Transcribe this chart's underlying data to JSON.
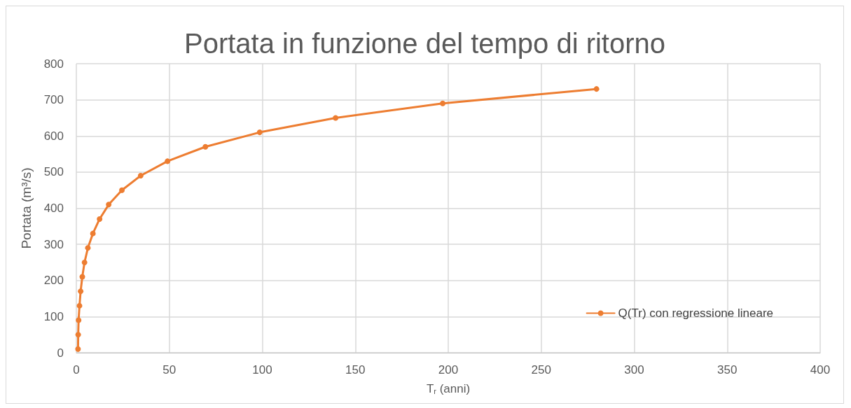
{
  "chart_data": {
    "type": "line",
    "title": "Portata in funzione del tempo di ritorno",
    "xlabel": "T$_{r}$ (anni)",
    "ylabel": "Portata (m³/s)",
    "series": [
      {
        "name": "Q(Tr) con regressione lineare",
        "color": "#ed7d31",
        "x": [
          0.9,
          1.0,
          1.2,
          1.7,
          2.3,
          3.2,
          4.4,
          6.2,
          8.9,
          12.5,
          17.4,
          24.5,
          34.6,
          49,
          69.4,
          98.6,
          139.4,
          197,
          279.7
        ],
        "values": [
          10,
          50,
          90,
          130,
          170,
          210,
          250,
          290,
          330,
          370,
          410,
          450,
          490,
          530,
          570,
          610,
          650,
          690,
          730
        ]
      }
    ],
    "xlim": [
      0,
      400
    ],
    "xticks": [
      0,
      50,
      100,
      150,
      200,
      250,
      300,
      350,
      400
    ],
    "ylim": [
      0,
      800
    ],
    "yticks": [
      0,
      100,
      200,
      300,
      400,
      500,
      600,
      700,
      800
    ],
    "grid": true,
    "legend": "bottom right",
    "marker": "circle",
    "line_style": "solid"
  }
}
